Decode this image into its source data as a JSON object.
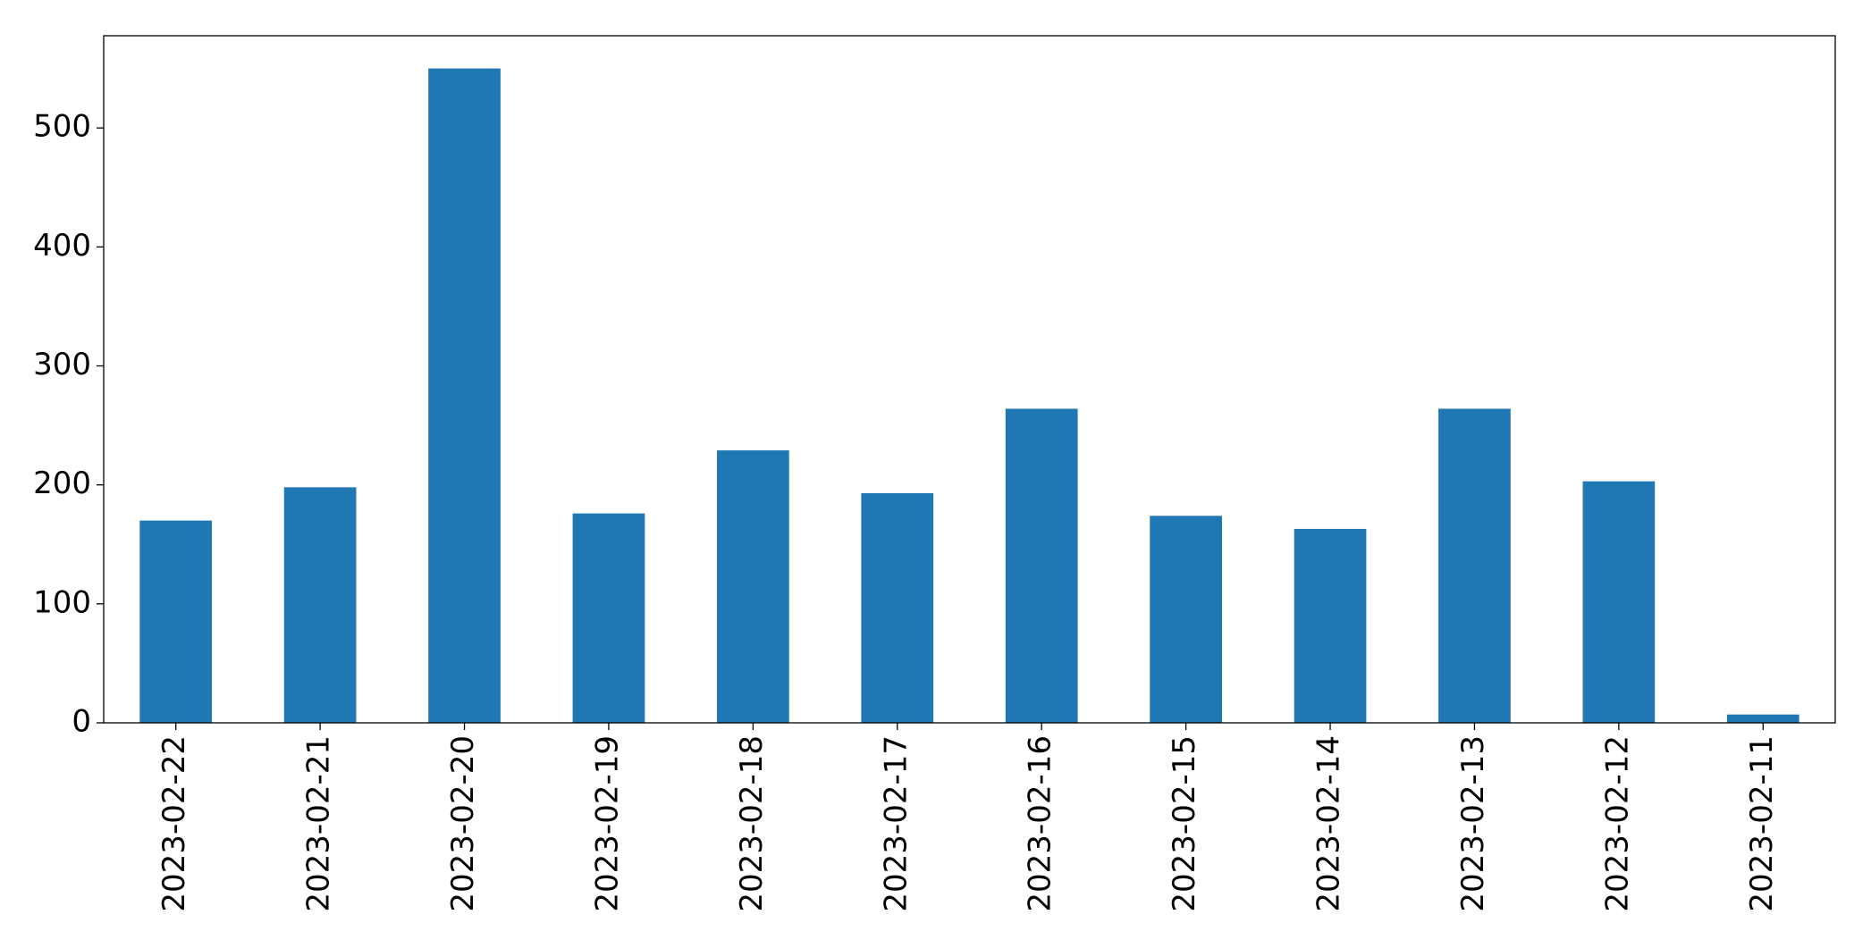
{
  "chart_data": {
    "type": "bar",
    "categories": [
      "2023-02-22",
      "2023-02-21",
      "2023-02-20",
      "2023-02-19",
      "2023-02-18",
      "2023-02-17",
      "2023-02-16",
      "2023-02-15",
      "2023-02-14",
      "2023-02-13",
      "2023-02-12",
      "2023-02-11"
    ],
    "values": [
      170,
      198,
      550,
      176,
      229,
      193,
      264,
      174,
      163,
      264,
      203,
      7
    ],
    "color": "#1f77b4",
    "ylim": [
      0,
      577.5
    ],
    "yticks": [
      0,
      100,
      200,
      300,
      400,
      500
    ],
    "grid": false
  }
}
